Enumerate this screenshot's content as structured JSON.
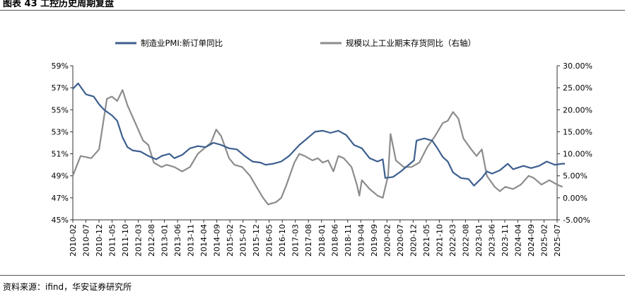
{
  "page": {
    "title": "图表 43 工控历史周期复盘",
    "source": "资料来源：ifind，华安证券研究所"
  },
  "colors": {
    "series_left": "#3d5f8f",
    "series_right": "#8c8c8c",
    "axis": "#333333"
  },
  "chart_data": {
    "type": "line",
    "title": "",
    "legend_position": "top",
    "grid": false,
    "x_categories": [
      "2010-02",
      "2010-07",
      "2010-12",
      "2011-05",
      "2011-10",
      "2012-03",
      "2012-08",
      "2013-01",
      "2013-06",
      "2013-11",
      "2014-04",
      "2014-09",
      "2015-02",
      "2015-07",
      "2015-12",
      "2016-05",
      "2016-10",
      "2017-03",
      "2017-08",
      "2018-01",
      "2018-06",
      "2018-11",
      "2019-04",
      "2019-09",
      "2020-02",
      "2020-07",
      "2020-12",
      "2021-05",
      "2021-10",
      "2022-03",
      "2022-08",
      "2023-01",
      "2023-06",
      "2023-11",
      "2024-04",
      "2024-09",
      "2025-02",
      "2025-07"
    ],
    "y_left": {
      "min": 45,
      "max": 59,
      "step": 2,
      "tick_labels": [
        "45%",
        "47%",
        "49%",
        "51%",
        "53%",
        "55%",
        "57%",
        "59%"
      ]
    },
    "y_right": {
      "min": -5,
      "max": 30,
      "step": 5,
      "tick_labels": [
        "-5.00%",
        "0.00%",
        "5.00%",
        "10.00%",
        "15.00%",
        "20.00%",
        "25.00%",
        "30.00%"
      ]
    },
    "series": [
      {
        "name": "制造业PMI:新订单同比",
        "axis": "left",
        "values": [
          [
            2010.08,
            56.9
          ],
          [
            2010.25,
            57.4
          ],
          [
            2010.5,
            56.4
          ],
          [
            2010.75,
            56.2
          ],
          [
            2010.92,
            55.5
          ],
          [
            2011.08,
            55.0
          ],
          [
            2011.33,
            54.5
          ],
          [
            2011.5,
            54.0
          ],
          [
            2011.67,
            52.5
          ],
          [
            2011.83,
            51.6
          ],
          [
            2012.0,
            51.3
          ],
          [
            2012.25,
            51.2
          ],
          [
            2012.5,
            50.8
          ],
          [
            2012.75,
            50.5
          ],
          [
            2012.92,
            50.8
          ],
          [
            2013.17,
            51.0
          ],
          [
            2013.33,
            50.6
          ],
          [
            2013.58,
            50.9
          ],
          [
            2013.83,
            51.5
          ],
          [
            2014.08,
            51.7
          ],
          [
            2014.33,
            51.6
          ],
          [
            2014.58,
            52.0
          ],
          [
            2014.83,
            51.8
          ],
          [
            2015.08,
            51.5
          ],
          [
            2015.33,
            51.4
          ],
          [
            2015.58,
            50.8
          ],
          [
            2015.83,
            50.3
          ],
          [
            2016.08,
            50.2
          ],
          [
            2016.25,
            50.0
          ],
          [
            2016.5,
            50.1
          ],
          [
            2016.75,
            50.3
          ],
          [
            2017.0,
            50.8
          ],
          [
            2017.33,
            51.8
          ],
          [
            2017.58,
            52.4
          ],
          [
            2017.83,
            53.0
          ],
          [
            2018.08,
            53.1
          ],
          [
            2018.33,
            52.9
          ],
          [
            2018.58,
            53.1
          ],
          [
            2018.83,
            52.7
          ],
          [
            2019.08,
            51.8
          ],
          [
            2019.33,
            51.5
          ],
          [
            2019.58,
            50.6
          ],
          [
            2019.83,
            50.3
          ],
          [
            2020.0,
            50.5
          ],
          [
            2020.08,
            48.8
          ],
          [
            2020.33,
            48.9
          ],
          [
            2020.58,
            49.4
          ],
          [
            2020.83,
            50.0
          ],
          [
            2021.0,
            50.4
          ],
          [
            2021.08,
            52.2
          ],
          [
            2021.33,
            52.4
          ],
          [
            2021.58,
            52.2
          ],
          [
            2021.75,
            51.5
          ],
          [
            2021.92,
            50.7
          ],
          [
            2022.08,
            50.3
          ],
          [
            2022.25,
            49.3
          ],
          [
            2022.5,
            48.8
          ],
          [
            2022.75,
            48.7
          ],
          [
            2022.92,
            48.1
          ],
          [
            2023.17,
            48.8
          ],
          [
            2023.33,
            49.4
          ],
          [
            2023.5,
            49.2
          ],
          [
            2023.75,
            49.5
          ],
          [
            2024.0,
            50.1
          ],
          [
            2024.17,
            49.6
          ],
          [
            2024.5,
            49.9
          ],
          [
            2024.75,
            49.7
          ],
          [
            2025.0,
            49.9
          ],
          [
            2025.25,
            50.3
          ],
          [
            2025.5,
            50.0
          ],
          [
            2025.75,
            50.1
          ],
          [
            2025.83,
            50.1
          ]
        ]
      },
      {
        "name": "规模以上工业期末存货同比（右轴）",
        "axis": "right",
        "values": [
          [
            2010.08,
            5.0
          ],
          [
            2010.33,
            9.5
          ],
          [
            2010.67,
            9.0
          ],
          [
            2010.92,
            11.0
          ],
          [
            2011.17,
            22.5
          ],
          [
            2011.33,
            23.0
          ],
          [
            2011.5,
            22.0
          ],
          [
            2011.67,
            24.5
          ],
          [
            2011.83,
            21.0
          ],
          [
            2012.08,
            17.0
          ],
          [
            2012.33,
            13.0
          ],
          [
            2012.5,
            12.0
          ],
          [
            2012.67,
            8.0
          ],
          [
            2012.92,
            7.0
          ],
          [
            2013.08,
            7.5
          ],
          [
            2013.33,
            7.0
          ],
          [
            2013.58,
            6.0
          ],
          [
            2013.83,
            7.0
          ],
          [
            2014.08,
            10.0
          ],
          [
            2014.33,
            11.5
          ],
          [
            2014.5,
            12.5
          ],
          [
            2014.67,
            15.5
          ],
          [
            2014.83,
            14.0
          ],
          [
            2015.08,
            9.0
          ],
          [
            2015.25,
            7.5
          ],
          [
            2015.5,
            7.0
          ],
          [
            2015.75,
            5.0
          ],
          [
            2016.0,
            2.0
          ],
          [
            2016.17,
            0.0
          ],
          [
            2016.33,
            -1.5
          ],
          [
            2016.58,
            -1.0
          ],
          [
            2016.75,
            0.0
          ],
          [
            2016.92,
            3.0
          ],
          [
            2017.17,
            8.0
          ],
          [
            2017.33,
            10.0
          ],
          [
            2017.5,
            9.5
          ],
          [
            2017.75,
            8.5
          ],
          [
            2017.92,
            9.0
          ],
          [
            2018.08,
            8.0
          ],
          [
            2018.25,
            8.5
          ],
          [
            2018.42,
            6.0
          ],
          [
            2018.58,
            9.5
          ],
          [
            2018.75,
            9.0
          ],
          [
            2019.0,
            7.0
          ],
          [
            2019.17,
            3.0
          ],
          [
            2019.25,
            0.5
          ],
          [
            2019.33,
            4.0
          ],
          [
            2019.58,
            2.0
          ],
          [
            2019.83,
            0.5
          ],
          [
            2020.0,
            0.0
          ],
          [
            2020.17,
            5.0
          ],
          [
            2020.25,
            14.5
          ],
          [
            2020.42,
            8.5
          ],
          [
            2020.67,
            7.0
          ],
          [
            2020.92,
            7.0
          ],
          [
            2021.17,
            8.0
          ],
          [
            2021.42,
            11.5
          ],
          [
            2021.67,
            14.0
          ],
          [
            2021.92,
            17.0
          ],
          [
            2022.08,
            17.5
          ],
          [
            2022.25,
            19.5
          ],
          [
            2022.42,
            18.0
          ],
          [
            2022.58,
            13.5
          ],
          [
            2022.83,
            11.0
          ],
          [
            2023.0,
            9.5
          ],
          [
            2023.17,
            11.0
          ],
          [
            2023.33,
            5.0
          ],
          [
            2023.58,
            2.5
          ],
          [
            2023.75,
            1.5
          ],
          [
            2023.92,
            2.5
          ],
          [
            2024.17,
            2.0
          ],
          [
            2024.42,
            3.0
          ],
          [
            2024.67,
            5.0
          ],
          [
            2024.83,
            4.5
          ],
          [
            2025.08,
            3.0
          ],
          [
            2025.33,
            4.0
          ],
          [
            2025.58,
            3.0
          ],
          [
            2025.75,
            2.5
          ]
        ]
      }
    ]
  }
}
